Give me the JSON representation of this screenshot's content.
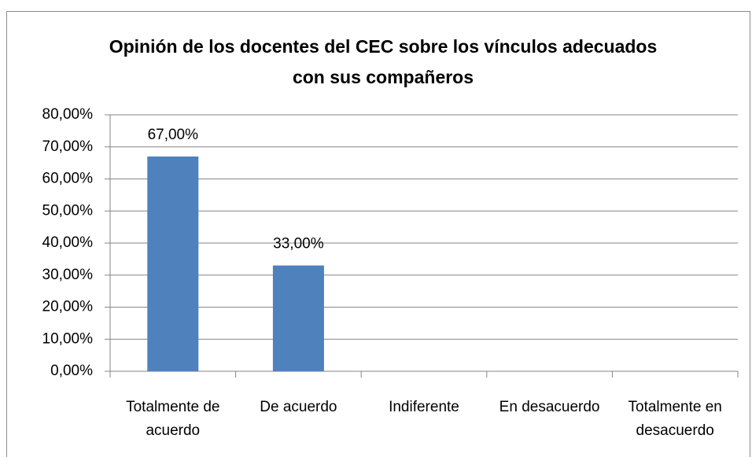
{
  "chart_data": {
    "type": "bar",
    "title": "Opinión de los docentes del CEC sobre los vínculos adecuados con sus compañeros",
    "categories": [
      "Totalmente de acuerdo",
      "De acuerdo",
      "Indiferente",
      "En desacuerdo",
      "Totalmente en desacuerdo"
    ],
    "values": [
      67,
      33,
      0,
      0,
      0
    ],
    "value_labels": [
      "67,00%",
      "33,00%",
      null,
      null,
      null
    ],
    "color": "#4f81bd",
    "ylim": [
      0,
      80
    ],
    "yticks": [
      {
        "value": 0,
        "label": "0,00%"
      },
      {
        "value": 10,
        "label": "10,00%"
      },
      {
        "value": 20,
        "label": "20,00%"
      },
      {
        "value": 30,
        "label": "30,00%"
      },
      {
        "value": 40,
        "label": "40,00%"
      },
      {
        "value": 50,
        "label": "50,00%"
      },
      {
        "value": 60,
        "label": "60,00%"
      },
      {
        "value": 70,
        "label": "70,00%"
      },
      {
        "value": 80,
        "label": "80,00%"
      }
    ],
    "grid": true
  }
}
